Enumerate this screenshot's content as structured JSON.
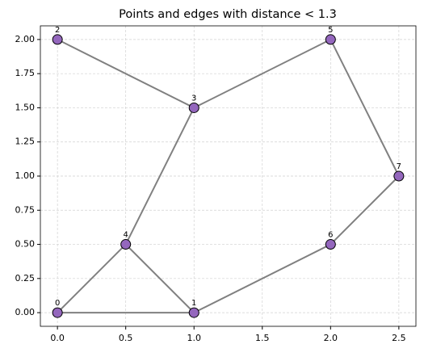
{
  "chart_data": {
    "type": "scatter",
    "title": "Points and edges with distance < 1.3",
    "x": [
      0,
      1,
      0,
      1,
      0.5,
      2,
      2,
      2.5
    ],
    "values": [
      0,
      0,
      2,
      1.5,
      0.5,
      2,
      0.5,
      1
    ],
    "labels": [
      "0",
      "1",
      "2",
      "3",
      "4",
      "5",
      "6",
      "7"
    ],
    "edges": [
      [
        0,
        1
      ],
      [
        0,
        4
      ],
      [
        1,
        4
      ],
      [
        1,
        6
      ],
      [
        2,
        3
      ],
      [
        3,
        4
      ],
      [
        3,
        5
      ],
      [
        5,
        7
      ],
      [
        6,
        7
      ]
    ],
    "color": "#9467bd",
    "edge_color": "#808080",
    "xlim": [
      -0.125,
      2.625
    ],
    "xticks": [
      {
        "value": 0,
        "label": "0.0"
      },
      {
        "value": 0.5,
        "label": "0.5"
      },
      {
        "value": 1,
        "label": "1.0"
      },
      {
        "value": 1.5,
        "label": "1.5"
      },
      {
        "value": 2,
        "label": "2.0"
      },
      {
        "value": 2.5,
        "label": "2.5"
      }
    ],
    "ylim": [
      -0.1,
      2.1
    ],
    "yticks": [
      {
        "value": 0,
        "label": "0.00"
      },
      {
        "value": 0.25,
        "label": "0.25"
      },
      {
        "value": 0.5,
        "label": "0.50"
      },
      {
        "value": 0.75,
        "label": "0.75"
      },
      {
        "value": 1,
        "label": "1.00"
      },
      {
        "value": 1.25,
        "label": "1.25"
      },
      {
        "value": 1.5,
        "label": "1.50"
      },
      {
        "value": 1.75,
        "label": "1.75"
      },
      {
        "value": 2,
        "label": "2.00"
      }
    ],
    "grid": true
  }
}
